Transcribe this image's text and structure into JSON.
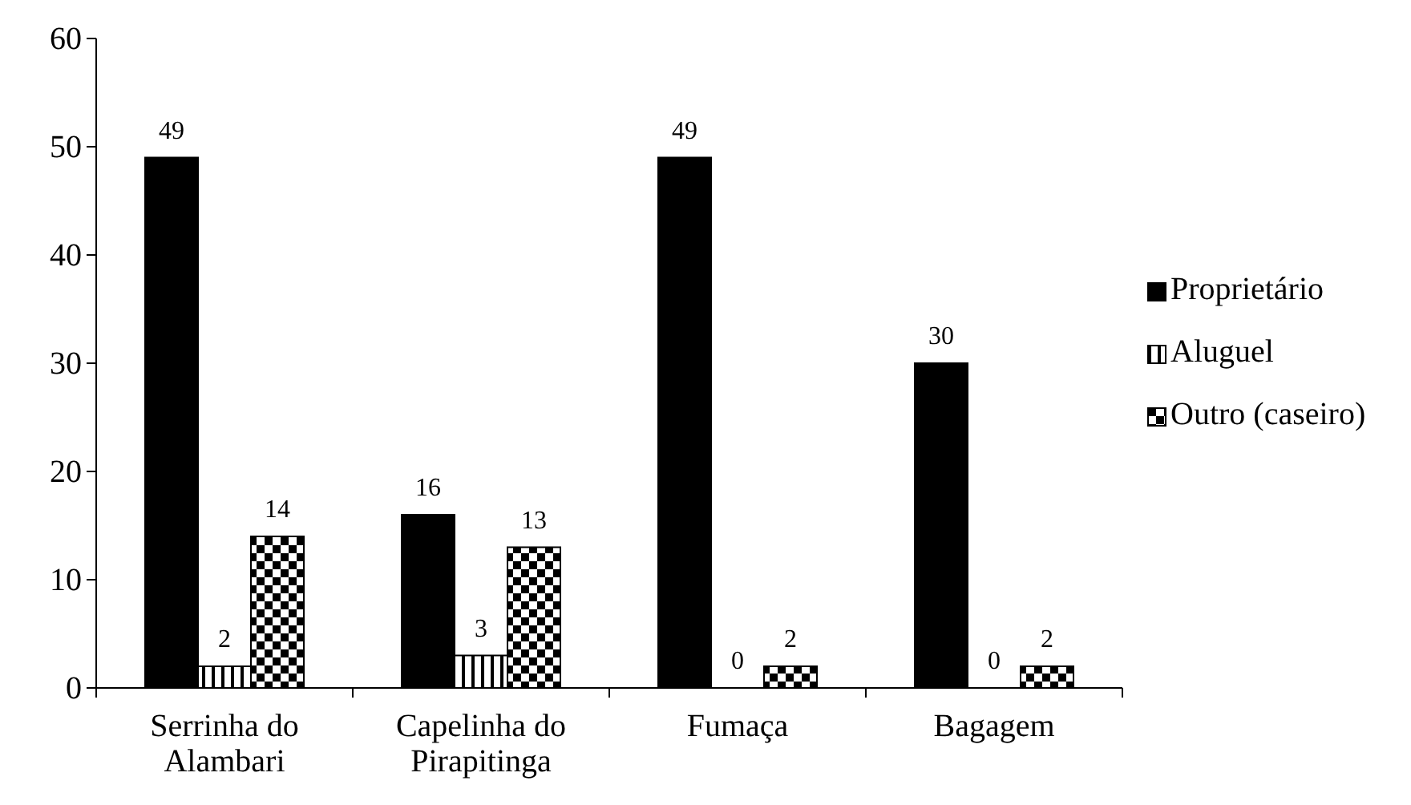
{
  "chart_data": {
    "type": "bar",
    "categories": [
      "Serrinha do Alambari",
      "Capelinha do Pirapitinga",
      "Fumaça",
      "Bagagem"
    ],
    "series": [
      {
        "name": "Proprietário",
        "color": "#000000",
        "values": [
          49,
          16,
          49,
          30
        ]
      },
      {
        "name": "Aluguel",
        "color": "#000000",
        "values": [
          2,
          3,
          0,
          0
        ]
      },
      {
        "name": "Outro (caseiro)",
        "color": "#000000",
        "values": [
          14,
          13,
          2,
          2
        ]
      }
    ],
    "ylim": [
      0,
      60
    ],
    "yticks": [
      0,
      10,
      20,
      30,
      40,
      50,
      60
    ],
    "data_labels": true,
    "legend": "right",
    "grid": false
  }
}
